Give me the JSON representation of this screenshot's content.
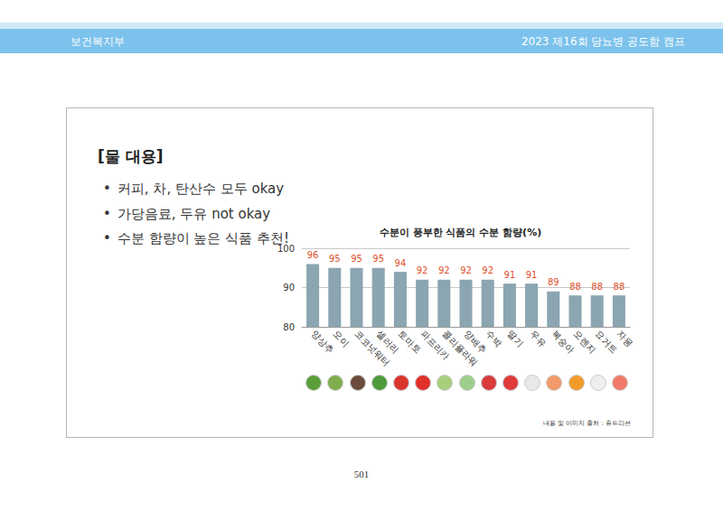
{
  "header": {
    "left": "보건복지부",
    "right": "2023 제16회 당뇨병 공도함 캠프"
  },
  "slide": {
    "heading": "[물 대용]",
    "bullets": [
      "커피, 차, 탄산수 모두 okay",
      "가당음료, 두유 not okay",
      "수분 함량이 높은 식품 추천!"
    ],
    "source": "내용 및 이미지 출처 : 휴트리션"
  },
  "chart_data": {
    "type": "bar",
    "title": "수분이 풍부한 식품의 수분 함량(%)",
    "categories": [
      "양상추",
      "오이",
      "코코넛워터",
      "셀러리",
      "토마토",
      "파프리카",
      "콜리플라워",
      "양배추",
      "수박",
      "딸기",
      "우유",
      "복숭아",
      "오렌지",
      "요거트",
      "자몽"
    ],
    "values": [
      96,
      95,
      95,
      95,
      94,
      92,
      92,
      92,
      92,
      91,
      91,
      89,
      88,
      88,
      88
    ],
    "color": "#8ba5b1",
    "ylim": [
      80,
      100
    ],
    "yticks": [
      80,
      90,
      100
    ],
    "grid": true,
    "data_labels": true
  },
  "page_number": "501"
}
